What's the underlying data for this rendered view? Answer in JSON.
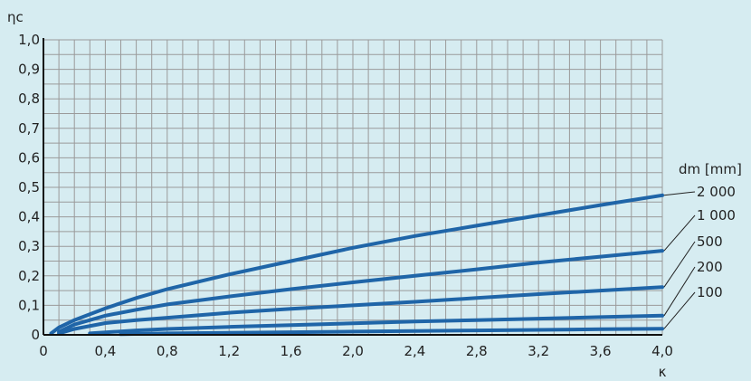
{
  "chart_data": {
    "type": "line",
    "ylabel": "ηc",
    "xlabel": "κ",
    "xlim": [
      0,
      4.0
    ],
    "ylim": [
      0,
      1.0
    ],
    "x_ticks": [
      "0",
      "0,4",
      "0,8",
      "1,2",
      "1,6",
      "2,0",
      "2,4",
      "2,8",
      "3,2",
      "3,6",
      "4,0"
    ],
    "y_ticks": [
      "0",
      "0,1",
      "0,2",
      "0,3",
      "0,4",
      "0,5",
      "0,6",
      "0,7",
      "0,8",
      "0,9",
      "1,0"
    ],
    "grid": true,
    "legend_title": "dm [mm]",
    "series": [
      {
        "name": "2 000",
        "x": [
          0.05,
          0.1,
          0.2,
          0.4,
          0.6,
          0.8,
          1.2,
          1.6,
          2.0,
          2.4,
          2.8,
          3.2,
          3.6,
          4.0
        ],
        "y": [
          0.005,
          0.025,
          0.05,
          0.09,
          0.125,
          0.155,
          0.205,
          0.25,
          0.295,
          0.335,
          0.37,
          0.405,
          0.44,
          0.473
        ]
      },
      {
        "name": "1 000",
        "x": [
          0.1,
          0.2,
          0.4,
          0.6,
          0.8,
          1.2,
          1.6,
          2.0,
          2.4,
          2.8,
          3.2,
          3.6,
          4.0
        ],
        "y": [
          0.01,
          0.035,
          0.065,
          0.085,
          0.103,
          0.13,
          0.155,
          0.178,
          0.2,
          0.222,
          0.245,
          0.265,
          0.285
        ]
      },
      {
        "name": "500",
        "x": [
          0.1,
          0.2,
          0.4,
          0.6,
          0.8,
          1.2,
          1.6,
          2.0,
          2.4,
          2.8,
          3.2,
          3.6,
          4.0
        ],
        "y": [
          0.005,
          0.02,
          0.04,
          0.05,
          0.058,
          0.075,
          0.088,
          0.1,
          0.112,
          0.125,
          0.138,
          0.15,
          0.162
        ]
      },
      {
        "name": "200",
        "x": [
          0.3,
          0.6,
          0.8,
          1.2,
          1.6,
          2.0,
          2.4,
          2.8,
          3.2,
          3.6,
          4.0
        ],
        "y": [
          0.005,
          0.015,
          0.02,
          0.027,
          0.033,
          0.039,
          0.045,
          0.05,
          0.055,
          0.06,
          0.065
        ]
      },
      {
        "name": "100",
        "x": [
          0.5,
          0.8,
          1.2,
          1.6,
          2.0,
          2.4,
          2.8,
          3.2,
          3.6,
          4.0
        ],
        "y": [
          0.002,
          0.005,
          0.007,
          0.009,
          0.011,
          0.013,
          0.015,
          0.017,
          0.019,
          0.021
        ]
      }
    ]
  }
}
